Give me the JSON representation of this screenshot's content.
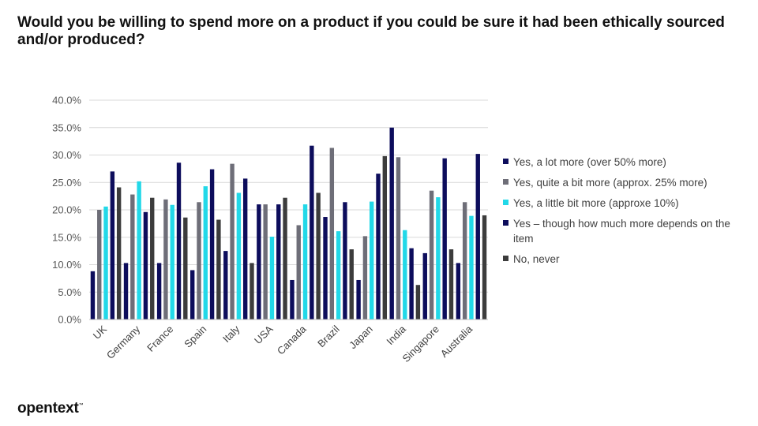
{
  "title": "Would you be willing to spend more on a product if you could be sure it had been ethically sourced and/or produced?",
  "logo": {
    "text": "opentext",
    "mark": "™"
  },
  "chart_data": {
    "type": "bar",
    "title": "Would you be willing to spend more on a product if you could be sure it had been ethically sourced and/or produced?",
    "xlabel": "",
    "ylabel": "",
    "ylim": [
      0,
      40
    ],
    "y_ticks": [
      0,
      5,
      10,
      15,
      20,
      25,
      30,
      35,
      40
    ],
    "y_tick_format": "percent_1dp",
    "grid": true,
    "legend_position": "right",
    "categories": [
      "UK",
      "Germany",
      "France",
      "Spain",
      "Italy",
      "USA",
      "Canada",
      "Brazil",
      "Japan",
      "India",
      "Singapore",
      "Australia"
    ],
    "series": [
      {
        "name": "Yes, a lot more (over 50% more)",
        "color": "#0d0d5c",
        "values": [
          8.8,
          10.3,
          10.3,
          9.0,
          12.5,
          21.0,
          7.2,
          18.7,
          7.2,
          35.0,
          12.1,
          10.3
        ]
      },
      {
        "name": "Yes, quite a bit more (approx. 25% more)",
        "color": "#6e6e78",
        "values": [
          20.0,
          22.8,
          21.9,
          21.4,
          28.4,
          21.0,
          17.2,
          31.3,
          15.2,
          29.6,
          23.5,
          21.4
        ]
      },
      {
        "name": "Yes, a little bit more (approxe 10%)",
        "color": "#22d8e8",
        "values": [
          20.6,
          25.2,
          20.9,
          24.3,
          23.1,
          15.1,
          21.0,
          16.1,
          21.5,
          16.3,
          22.3,
          18.9
        ]
      },
      {
        "name": "Yes – though how much more depends on the item",
        "color": "#0d0d5c",
        "values": [
          27.0,
          19.6,
          28.6,
          27.4,
          25.7,
          21.0,
          31.7,
          21.4,
          26.6,
          13.0,
          29.4,
          30.2
        ]
      },
      {
        "name": "No, never",
        "color": "#3c3c3c",
        "values": [
          24.1,
          22.2,
          18.6,
          18.2,
          10.3,
          22.2,
          23.1,
          12.8,
          29.8,
          6.3,
          12.8,
          19.0
        ]
      }
    ]
  }
}
